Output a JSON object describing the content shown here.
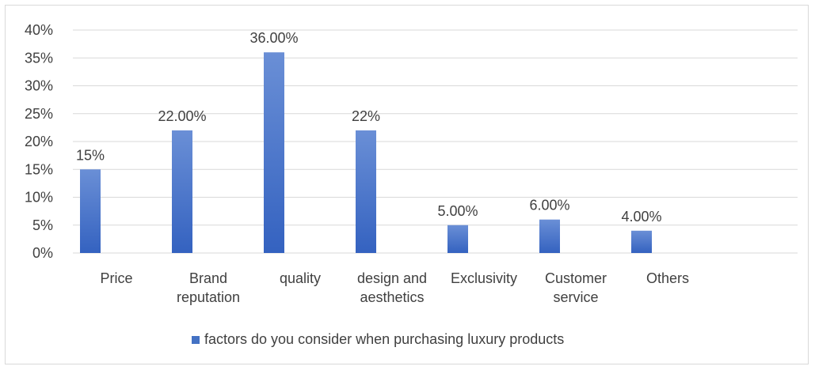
{
  "chart_data": {
    "type": "bar",
    "categories": [
      [
        "Price"
      ],
      [
        "Brand",
        "reputation"
      ],
      [
        "quality"
      ],
      [
        "design and",
        "aesthetics"
      ],
      [
        "Exclusivity"
      ],
      [
        "Customer",
        "service"
      ],
      [
        "Others"
      ]
    ],
    "values": [
      15,
      22,
      36,
      22,
      5,
      6,
      4
    ],
    "data_labels": [
      "15%",
      "22.00%",
      "36.00%",
      "22%",
      "5.00%",
      "6.00%",
      "4.00%"
    ],
    "series": [
      {
        "name": "factors do you consider when purchasing luxury products",
        "values": [
          15,
          22,
          36,
          22,
          5,
          6,
          4
        ]
      }
    ],
    "y_ticks": [
      "0%",
      "5%",
      "10%",
      "15%",
      "20%",
      "25%",
      "30%",
      "35%",
      "40%"
    ],
    "ylim": [
      0,
      40
    ],
    "grid": true,
    "legend_position": "bottom",
    "colors": {
      "bar_top": "#6a8fd6",
      "bar_bottom": "#3462c0",
      "grid": "#d9d9d9",
      "text": "#404040",
      "legend_marker": "#4472c4"
    }
  }
}
